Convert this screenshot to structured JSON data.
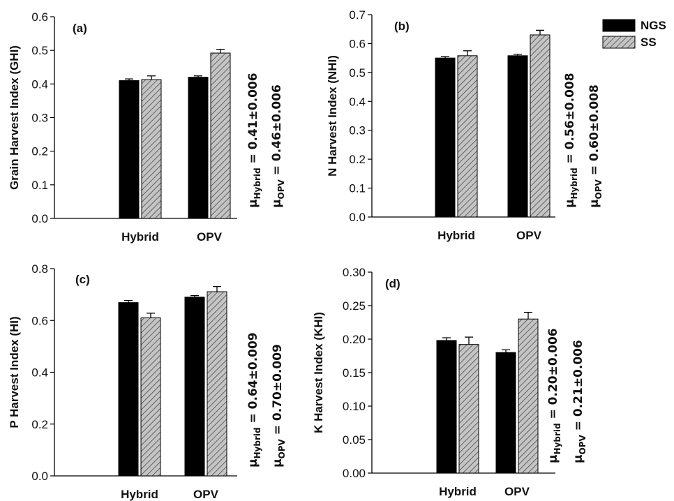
{
  "legend": [
    {
      "key": "NGS",
      "label": "NGS",
      "fill": "#000000",
      "pattern": "solid"
    },
    {
      "key": "SS",
      "label": "SS",
      "fill": "#bdbdbd",
      "pattern": "hatched"
    }
  ],
  "chart_data": [
    {
      "type": "bar",
      "panel_label": "(a)",
      "ylabel": "Grain Harvest Index (GHI)",
      "xlabel": "",
      "categories": [
        "Hybrid",
        "OPV"
      ],
      "ylim": [
        0,
        0.6
      ],
      "yticks": [
        0.0,
        0.1,
        0.2,
        0.3,
        0.4,
        0.5,
        0.6
      ],
      "tick_decimals": 1,
      "series": [
        {
          "name": "NGS",
          "values": [
            0.41,
            0.42
          ],
          "errors": [
            0.005,
            0.004
          ]
        },
        {
          "name": "SS",
          "values": [
            0.413,
            0.492
          ],
          "errors": [
            0.011,
            0.011
          ]
        }
      ],
      "annotations": [
        {
          "symbol": "μ",
          "subscript": "Hybrid",
          "text": " = 0.41±0.006"
        },
        {
          "symbol": "μ",
          "subscript": "OPV",
          "text": " = 0.46±0.006"
        }
      ]
    },
    {
      "type": "bar",
      "panel_label": "(b)",
      "ylabel": "N Harvest Index (NHI)",
      "xlabel": "",
      "categories": [
        "Hybrid",
        "OPV"
      ],
      "ylim": [
        0,
        0.7
      ],
      "yticks": [
        0.0,
        0.1,
        0.2,
        0.3,
        0.4,
        0.5,
        0.6,
        0.7
      ],
      "tick_decimals": 1,
      "series": [
        {
          "name": "NGS",
          "values": [
            0.55,
            0.558
          ],
          "errors": [
            0.005,
            0.005
          ]
        },
        {
          "name": "SS",
          "values": [
            0.558,
            0.63
          ],
          "errors": [
            0.017,
            0.016
          ]
        }
      ],
      "annotations": [
        {
          "symbol": "μ",
          "subscript": "Hybrid",
          "text": " = 0.56±0.008"
        },
        {
          "symbol": "μ",
          "subscript": "OPV",
          "text": " = 0.60±0.008"
        }
      ]
    },
    {
      "type": "bar",
      "panel_label": "(c)",
      "ylabel": "P Harvest Index (HI)",
      "xlabel": "",
      "categories": [
        "Hybrid",
        "OPV"
      ],
      "ylim": [
        0,
        0.8
      ],
      "yticks": [
        0.0,
        0.2,
        0.4,
        0.6,
        0.8
      ],
      "tick_decimals": 1,
      "series": [
        {
          "name": "NGS",
          "values": [
            0.669,
            0.69
          ],
          "errors": [
            0.008,
            0.006
          ]
        },
        {
          "name": "SS",
          "values": [
            0.61,
            0.711
          ],
          "errors": [
            0.018,
            0.02
          ]
        }
      ],
      "annotations": [
        {
          "symbol": "μ",
          "subscript": "Hybrid",
          "text": " = 0.64±0.009"
        },
        {
          "symbol": "μ",
          "subscript": "OPV",
          "text": " = 0.70±0.009"
        }
      ]
    },
    {
      "type": "bar",
      "panel_label": "(d)",
      "ylabel": "K Harvest Index (KHI)",
      "xlabel": "",
      "categories": [
        "Hybrid",
        "OPV"
      ],
      "ylim": [
        0,
        0.3
      ],
      "yticks": [
        0.0,
        0.05,
        0.1,
        0.15,
        0.2,
        0.25,
        0.3
      ],
      "tick_decimals": 2,
      "series": [
        {
          "name": "NGS",
          "values": [
            0.198,
            0.18
          ],
          "errors": [
            0.004,
            0.004
          ]
        },
        {
          "name": "SS",
          "values": [
            0.192,
            0.23
          ],
          "errors": [
            0.011,
            0.01
          ]
        }
      ],
      "annotations": [
        {
          "symbol": "μ",
          "subscript": "Hybrid",
          "text": " = 0.20±0.006"
        },
        {
          "symbol": "μ",
          "subscript": "OPV",
          "text": " = 0.21±0.006"
        }
      ]
    }
  ]
}
